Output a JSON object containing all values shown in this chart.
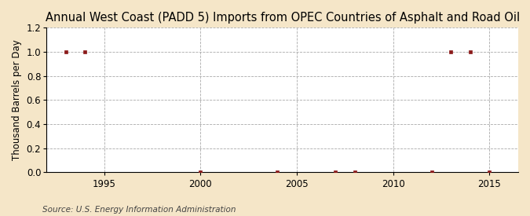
{
  "title": "Annual West Coast (PADD 5) Imports from OPEC Countries of Asphalt and Road Oil",
  "ylabel": "Thousand Barrels per Day",
  "source": "Source: U.S. Energy Information Administration",
  "background_color": "#f5e6c8",
  "plot_background_color": "#ffffff",
  "xlim": [
    1992,
    2016.5
  ],
  "ylim": [
    0.0,
    1.2
  ],
  "yticks": [
    0.0,
    0.2,
    0.4,
    0.6,
    0.8,
    1.0,
    1.2
  ],
  "xticks": [
    1995,
    2000,
    2005,
    2010,
    2015
  ],
  "data_x": [
    1993,
    1994,
    2000,
    2004,
    2007,
    2008,
    2012,
    2013,
    2014,
    2015
  ],
  "data_y": [
    1.0,
    1.0,
    0.0,
    0.0,
    0.0,
    0.0,
    0.0,
    1.0,
    1.0,
    0.0
  ],
  "marker_color": "#8b1a1a",
  "marker_style": "s",
  "marker_size": 3.5,
  "grid_color": "#aaaaaa",
  "grid_linestyle": "--",
  "title_fontsize": 10.5,
  "ylabel_fontsize": 8.5,
  "tick_fontsize": 8.5,
  "source_fontsize": 7.5
}
